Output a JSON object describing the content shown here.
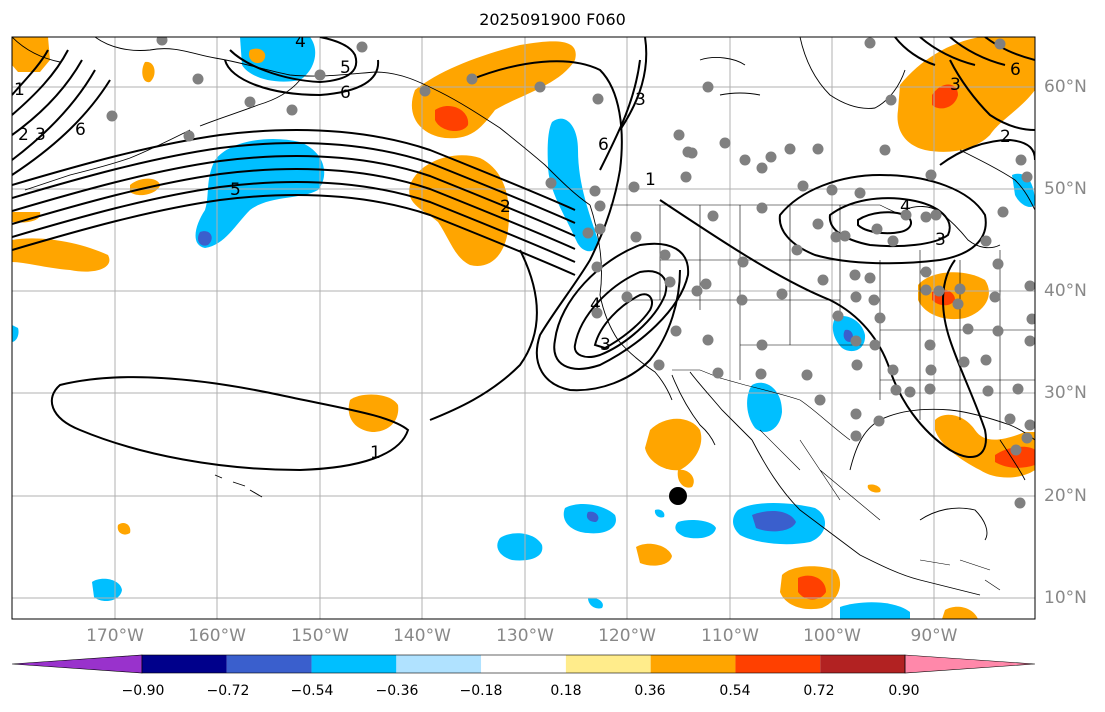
{
  "title": "2025091900 F060",
  "longitude_labels": [
    "170°W",
    "160°W",
    "150°W",
    "140°W",
    "130°W",
    "120°W",
    "110°W",
    "100°W",
    "90°W"
  ],
  "latitude_labels": [
    "60°N",
    "50°N",
    "40°N",
    "30°N",
    "20°N",
    "10°N"
  ],
  "colorbar": {
    "ticks": [
      "−0.90",
      "−0.72",
      "−0.54",
      "−0.36",
      "−0.18",
      "0.18",
      "0.36",
      "0.54",
      "0.72",
      "0.90"
    ],
    "colors": [
      "#9932cc",
      "#00008b",
      "#3a5fcd",
      "#00bfff",
      "#b0e2ff",
      "#ffffff",
      "#ffec8b",
      "#ffa500",
      "#ff4000",
      "#b22222",
      "#ff88aa"
    ]
  },
  "contour_labels": [
    "1",
    "2",
    "3",
    "4",
    "5",
    "6"
  ],
  "colors": {
    "positive_orange": "#ffa500",
    "positive_red": "#ff4000",
    "negative_blue": "#00bfff",
    "negative_dark": "#3a5fcd",
    "station": "#808080",
    "grid": "#b0b0b0"
  }
}
